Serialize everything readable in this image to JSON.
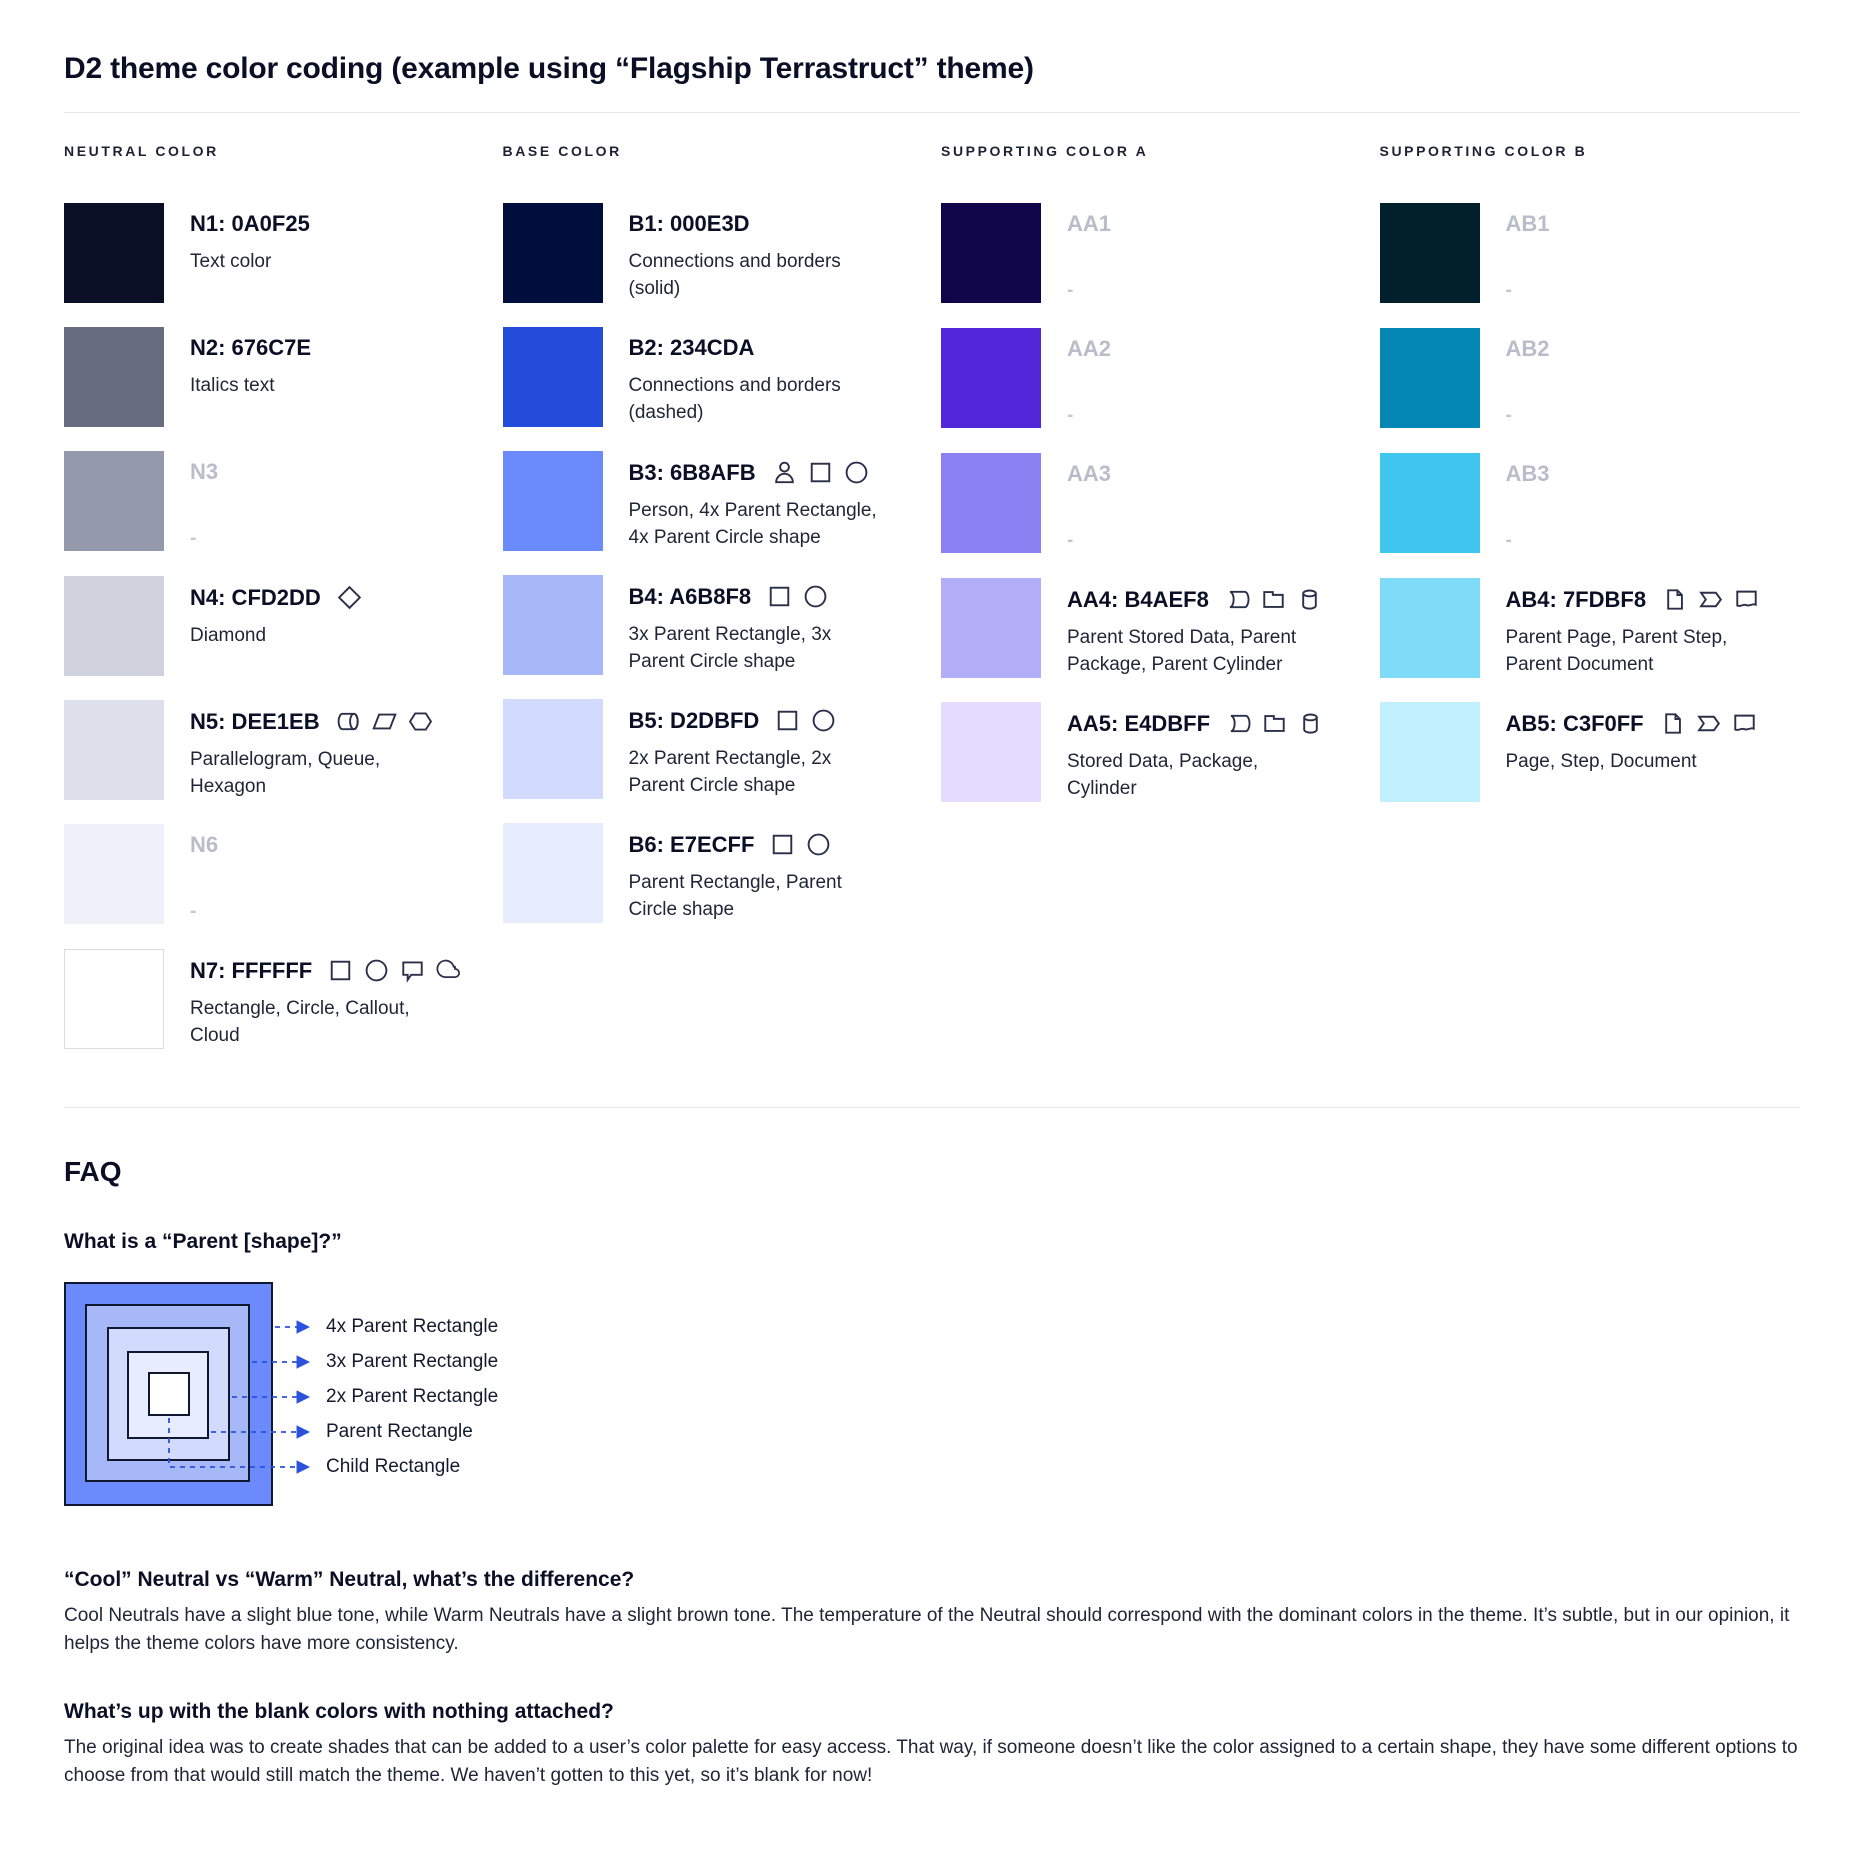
{
  "page": {
    "title": "D2 theme color coding (example using “Flagship Terrastruct” theme)"
  },
  "palette": {
    "columns": [
      {
        "header": "NEUTRAL COLOR",
        "rows": [
          {
            "name": "N1: 0A0F25",
            "desc": "Text color",
            "color": "#0A0F25",
            "icons": [],
            "blank": false
          },
          {
            "name": "N2: 676C7E",
            "desc": "Italics text",
            "color": "#676C7E",
            "icons": [],
            "blank": false
          },
          {
            "name": "N3",
            "desc": "-",
            "color": "#9499AB",
            "icons": [],
            "blank": true
          },
          {
            "name": "N4: CFD2DD",
            "desc": "Diamond",
            "color": "#CFD2DD",
            "icons": [
              "diamond"
            ],
            "blank": false
          },
          {
            "name": "N5: DEE1EB",
            "desc": "Parallelogram, Queue, Hexagon",
            "color": "#DEE1EB",
            "icons": [
              "queue",
              "parallelogram",
              "hexagon"
            ],
            "blank": false
          },
          {
            "name": "N6",
            "desc": "-",
            "color": "#EEF1F8",
            "icons": [],
            "blank": true
          },
          {
            "name": "N7: FFFFFF",
            "desc": "Rectangle, Circle, Callout, Cloud",
            "color": "#FFFFFF",
            "icons": [
              "rectangle",
              "circle",
              "callout",
              "cloud"
            ],
            "blank": false,
            "bordered": true
          }
        ]
      },
      {
        "header": "BASE COLOR",
        "rows": [
          {
            "name": "B1: 000E3D",
            "desc": "Connections and borders (solid)",
            "color": "#000E3D",
            "icons": [],
            "blank": false
          },
          {
            "name": "B2: 234CDA",
            "desc": "Connections and borders (dashed)",
            "color": "#234CDA",
            "icons": [],
            "blank": false
          },
          {
            "name": "B3: 6B8AFB",
            "desc": "Person, 4x Parent Rectangle, 4x Parent Circle shape",
            "color": "#6B8AFB",
            "icons": [
              "person",
              "rectangle",
              "circle"
            ],
            "blank": false
          },
          {
            "name": "B4: A6B8F8",
            "desc": "3x Parent Rectangle, 3x Parent Circle shape",
            "color": "#A6B8F8",
            "icons": [
              "rectangle",
              "circle"
            ],
            "blank": false
          },
          {
            "name": "B5: D2DBFD",
            "desc": "2x Parent Rectangle, 2x Parent Circle shape",
            "color": "#D2DBFD",
            "icons": [
              "rectangle",
              "circle"
            ],
            "blank": false
          },
          {
            "name": "B6: E7ECFF",
            "desc": "Parent Rectangle, Parent Circle shape",
            "color": "#E7ECFF",
            "icons": [
              "rectangle",
              "circle"
            ],
            "blank": false
          }
        ]
      },
      {
        "header": "SUPPORTING COLOR A",
        "rows": [
          {
            "name": "AA1",
            "desc": "-",
            "color": "#11054A",
            "icons": [],
            "blank": true
          },
          {
            "name": "AA2",
            "desc": "-",
            "color": "#5326D9",
            "icons": [],
            "blank": true
          },
          {
            "name": "AA3",
            "desc": "-",
            "color": "#8B80F1",
            "icons": [],
            "blank": true
          },
          {
            "name": "AA4: B4AEF8",
            "desc": "Parent Stored Data, Parent Package, Parent Cylinder",
            "color": "#B4AEF8",
            "icons": [
              "stored-data",
              "package",
              "cylinder"
            ],
            "blank": false
          },
          {
            "name": "AA5: E4DBFF",
            "desc": "Stored Data, Package, Cylinder",
            "color": "#E4DBFF",
            "icons": [
              "stored-data",
              "package",
              "cylinder"
            ],
            "blank": false
          }
        ]
      },
      {
        "header": "SUPPORTING COLOR B",
        "rows": [
          {
            "name": "AB1",
            "desc": "-",
            "color": "#02202B",
            "icons": [],
            "blank": true
          },
          {
            "name": "AB2",
            "desc": "-",
            "color": "#0487B4",
            "icons": [],
            "blank": true
          },
          {
            "name": "AB3",
            "desc": "-",
            "color": "#3FC7EF",
            "icons": [],
            "blank": true
          },
          {
            "name": "AB4: 7FDBF8",
            "desc": "Parent Page, Parent Step, Parent Document",
            "color": "#7FDBF8",
            "icons": [
              "page",
              "step",
              "document"
            ],
            "blank": false
          },
          {
            "name": "AB5: C3F0FF",
            "desc": "Page, Step, Document",
            "color": "#C3F0FF",
            "icons": [
              "page",
              "step",
              "document"
            ],
            "blank": false
          }
        ]
      }
    ]
  },
  "faq": {
    "title": "FAQ",
    "q1": {
      "question": "What is a “Parent [shape]?”",
      "diagram": {
        "labels": [
          "4x Parent Rectangle",
          "3x Parent Rectangle",
          "2x Parent Rectangle",
          "Parent Rectangle",
          "Child Rectangle"
        ],
        "layer_colors": [
          "#6B8AFB",
          "#A6B8F8",
          "#D2DBFD",
          "#E7ECFF",
          "#FFFFFF"
        ],
        "line_color": "#2A52DC"
      }
    },
    "q2": {
      "question": "“Cool” Neutral vs “Warm” Neutral, what’s the difference?",
      "answer": "Cool Neutrals have a slight blue tone, while Warm Neutrals have a slight brown tone. The temperature of the Neutral should correspond with the dominant colors in the theme. It’s subtle, but in our opinion, it helps the theme colors have more consistency."
    },
    "q3": {
      "question": "What’s up with the blank colors with nothing attached?",
      "answer": "The original idea was to create shades that can be added to a user’s color palette for easy access. That way, if someone doesn’t like the color assigned to a certain shape, they have some different options to choose from that would still match the theme. We haven’t gotten to this yet, so it’s blank for now!"
    }
  }
}
